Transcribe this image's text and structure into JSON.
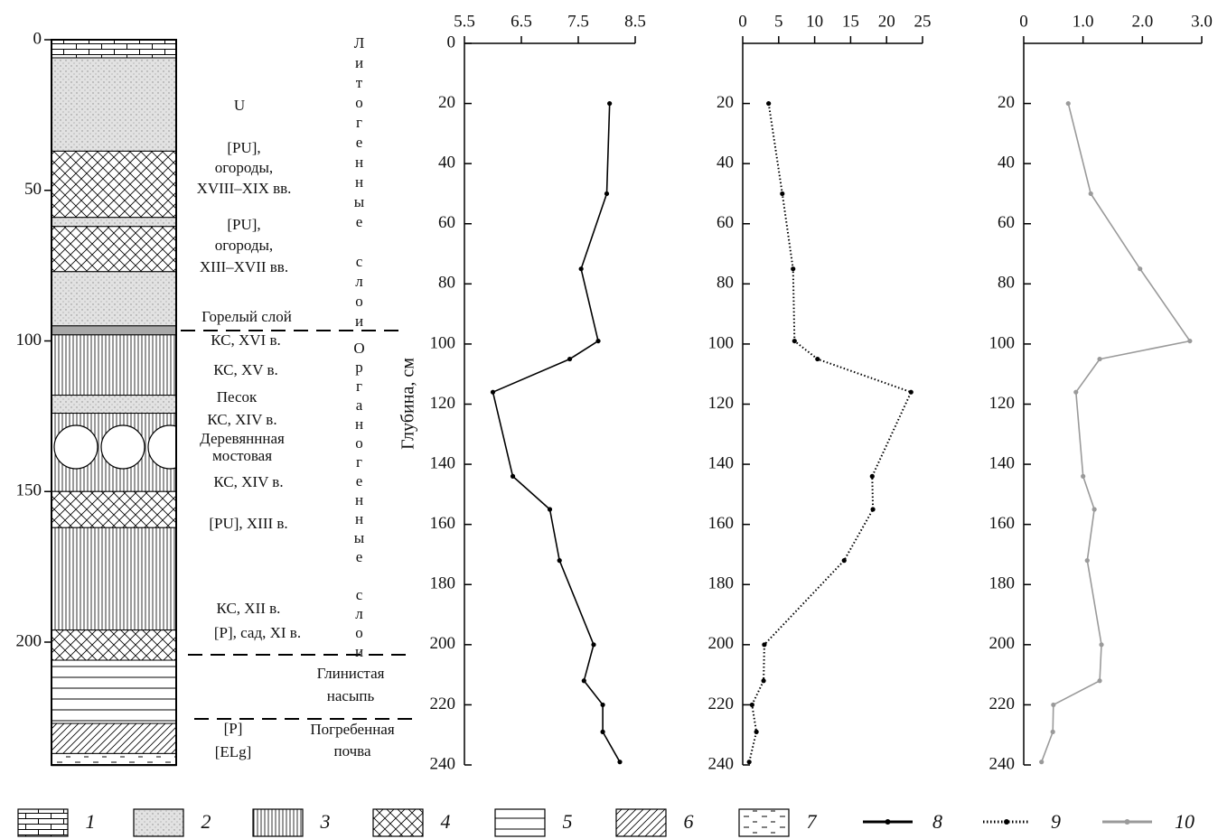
{
  "column": {
    "depth_ticks": [
      0,
      50,
      100,
      150,
      200
    ],
    "layers": [
      {
        "top": 0,
        "bottom": 6,
        "pattern": "1"
      },
      {
        "top": 6,
        "bottom": 37,
        "pattern": "2"
      },
      {
        "top": 37,
        "bottom": 59,
        "pattern": "4"
      },
      {
        "top": 59,
        "bottom": 62,
        "pattern": "2"
      },
      {
        "top": 62,
        "bottom": 77,
        "pattern": "4"
      },
      {
        "top": 77,
        "bottom": 95,
        "pattern": "2"
      },
      {
        "top": 95,
        "bottom": 98,
        "color": "#a8a8a8"
      },
      {
        "top": 98,
        "bottom": 118,
        "pattern": "3"
      },
      {
        "top": 118,
        "bottom": 124,
        "pattern": "2"
      },
      {
        "top": 124,
        "bottom": 150,
        "pattern": "3"
      },
      {
        "top": 150,
        "bottom": 162,
        "pattern": "4"
      },
      {
        "top": 162,
        "bottom": 196,
        "pattern": "3"
      },
      {
        "top": 196,
        "bottom": 206,
        "pattern": "4"
      },
      {
        "top": 206,
        "bottom": 227,
        "pattern": "5"
      },
      {
        "top": 227,
        "bottom": 237,
        "pattern": "6"
      },
      {
        "top": 237,
        "bottom": 241,
        "pattern": "7"
      }
    ],
    "labels": [
      "U",
      "[PU],",
      "огороды,",
      "XVIII–XIX вв.",
      "[PU],",
      "огороды,",
      "XIII–XVII вв.",
      "Горелый слой",
      "КС, XVI в.",
      "КС, XV в.",
      "Песок",
      "КС, XIV в.",
      "Деревяннная",
      "мостовая",
      "КС, XIV в.",
      "[PU], XIII в.",
      "КС, XII в.",
      "[P], сад, XI в.",
      "Глинистая",
      "насыпь",
      "[P]",
      "[ELg]",
      "Погребенная",
      "почва"
    ],
    "vertical_labels": [
      "Литогенные слои",
      "Органогенные слои"
    ]
  },
  "legend": [
    "1",
    "2",
    "3",
    "4",
    "5",
    "6",
    "7"
  ],
  "chart_data": [
    {
      "type": "line",
      "ylabel": "Глубина, см",
      "invert_y": true,
      "y": [
        20,
        50,
        75,
        99,
        105,
        116,
        144,
        155,
        172,
        200,
        212,
        220,
        229,
        239
      ],
      "series": [
        {
          "name": "8",
          "color": "#000000",
          "line_style": "solid",
          "values": [
            8.05,
            8.0,
            7.55,
            7.85,
            7.35,
            6.0,
            6.35,
            7.0,
            7.17,
            7.77,
            7.6,
            7.93,
            7.93,
            8.23
          ]
        }
      ],
      "xlim": [
        5.5,
        8.5
      ],
      "xticks": [
        5.5,
        6.5,
        7.5,
        8.5
      ],
      "ylim": [
        0,
        240
      ],
      "yticks": [
        0,
        20,
        40,
        60,
        80,
        100,
        120,
        140,
        160,
        180,
        200,
        220,
        240
      ]
    },
    {
      "type": "line",
      "invert_y": true,
      "y": [
        20,
        50,
        75,
        99,
        105,
        116,
        144,
        155,
        172,
        200,
        212,
        220,
        229,
        239
      ],
      "series": [
        {
          "name": "9",
          "color": "#000000",
          "line_style": "dotted",
          "values": [
            3.6,
            5.5,
            7.0,
            7.2,
            10.4,
            23.4,
            18.0,
            18.1,
            14.1,
            3.0,
            2.9,
            1.3,
            1.9,
            0.9
          ]
        }
      ],
      "xlim": [
        0,
        25
      ],
      "xticks": [
        0,
        5,
        10,
        15,
        20,
        25
      ],
      "ylim": [
        0,
        240
      ],
      "yticks": [
        20,
        40,
        60,
        80,
        100,
        120,
        140,
        160,
        180,
        200,
        220,
        240
      ]
    },
    {
      "type": "line",
      "invert_y": true,
      "y": [
        20,
        50,
        75,
        99,
        105,
        116,
        144,
        155,
        172,
        200,
        212,
        220,
        229,
        239
      ],
      "series": [
        {
          "name": "10",
          "color": "#9a9a9a",
          "line_style": "solid",
          "values": [
            0.75,
            1.13,
            1.96,
            2.8,
            1.28,
            0.88,
            1.0,
            1.19,
            1.07,
            1.31,
            1.28,
            0.5,
            0.49,
            0.3
          ]
        }
      ],
      "xlim": [
        0,
        3
      ],
      "xticks": [
        0,
        {
          "value": 1,
          "label": "1.0"
        },
        {
          "value": 2,
          "label": "2.0"
        },
        {
          "value": 3,
          "label": "3.0"
        }
      ],
      "ylim": [
        0,
        240
      ],
      "yticks": [
        20,
        40,
        60,
        80,
        100,
        120,
        140,
        160,
        180,
        200,
        220,
        240
      ]
    }
  ]
}
